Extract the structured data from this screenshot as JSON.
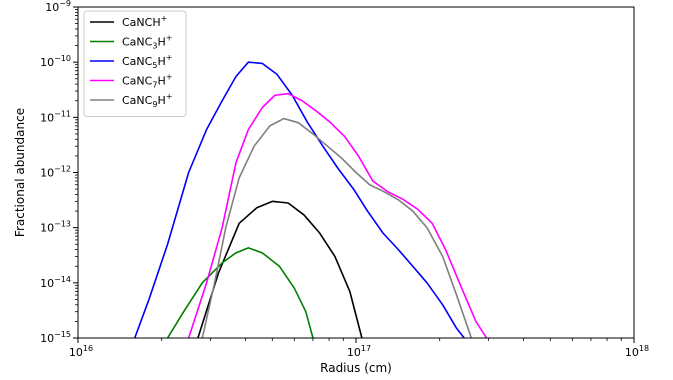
{
  "chart_data": {
    "type": "line",
    "xlabel": "Radius (cm)",
    "ylabel": "Fractional abundance",
    "xscale": "log",
    "yscale": "log",
    "xlim": [
      1e+16,
      1e+18
    ],
    "ylim": [
      1e-15,
      1e-09
    ],
    "legend": "top-left",
    "grid": false,
    "x_ticks": [
      {
        "value": 1e+16,
        "base": "10",
        "exp": "16"
      },
      {
        "value": 1e+17,
        "base": "10",
        "exp": "17"
      },
      {
        "value": 1e+18,
        "base": "10",
        "exp": "18"
      }
    ],
    "y_ticks": [
      {
        "value": 1e-15,
        "base": "10",
        "exp": "−15"
      },
      {
        "value": 1e-14,
        "base": "10",
        "exp": "−14"
      },
      {
        "value": 1e-13,
        "base": "10",
        "exp": "−13"
      },
      {
        "value": 1e-12,
        "base": "10",
        "exp": "−12"
      },
      {
        "value": 1e-11,
        "base": "10",
        "exp": "−11"
      },
      {
        "value": 1e-10,
        "base": "10",
        "exp": "−10"
      },
      {
        "value": 1e-09,
        "base": "10",
        "exp": "−9"
      }
    ],
    "series": [
      {
        "name": "CaNCH⁺",
        "label_parts": [
          {
            "t": "CaNCH"
          },
          {
            "t": "+",
            "sup": true
          }
        ],
        "color": "#000000",
        "points": [
          [
            2.7e+16,
            1e-15
          ],
          [
            3.2e+16,
            1.5e-14
          ],
          [
            3.8e+16,
            1.2e-13
          ],
          [
            4.4e+16,
            2.3e-13
          ],
          [
            5e+16,
            3e-13
          ],
          [
            5.7e+16,
            2.8e-13
          ],
          [
            6.5e+16,
            1.7e-13
          ],
          [
            7.4e+16,
            8e-14
          ],
          [
            8.4e+16,
            3e-14
          ],
          [
            9.5e+16,
            7e-15
          ],
          [
            1.05e+17,
            1e-15
          ]
        ]
      },
      {
        "name": "CaNC₃H⁺",
        "label_parts": [
          {
            "t": "CaNC"
          },
          {
            "t": "3",
            "sub": true
          },
          {
            "t": "H"
          },
          {
            "t": "+",
            "sup": true
          }
        ],
        "color": "#008000",
        "points": [
          [
            2.1e+16,
            1e-15
          ],
          [
            2.4e+16,
            3e-15
          ],
          [
            2.8e+16,
            1e-14
          ],
          [
            3.3e+16,
            2.3e-14
          ],
          [
            3.7e+16,
            3.5e-14
          ],
          [
            4.1e+16,
            4.3e-14
          ],
          [
            4.6e+16,
            3.5e-14
          ],
          [
            5.3e+16,
            2e-14
          ],
          [
            6e+16,
            8e-15
          ],
          [
            6.6e+16,
            3e-15
          ],
          [
            7e+16,
            1e-15
          ]
        ]
      },
      {
        "name": "CaNC₅H⁺",
        "label_parts": [
          {
            "t": "CaNC"
          },
          {
            "t": "5",
            "sub": true
          },
          {
            "t": "H"
          },
          {
            "t": "+",
            "sup": true
          }
        ],
        "color": "#0000ff",
        "points": [
          [
            1.6e+16,
            1e-15
          ],
          [
            1.8e+16,
            5e-15
          ],
          [
            2.1e+16,
            5e-14
          ],
          [
            2.5e+16,
            1e-12
          ],
          [
            2.9e+16,
            6e-12
          ],
          [
            3.3e+16,
            2e-11
          ],
          [
            3.7e+16,
            5.5e-11
          ],
          [
            4.1e+16,
            1e-10
          ],
          [
            4.6e+16,
            9.5e-11
          ],
          [
            5.2e+16,
            6e-11
          ],
          [
            5.9e+16,
            2.5e-11
          ],
          [
            6.7e+16,
            8e-12
          ],
          [
            7.6e+16,
            3e-12
          ],
          [
            8.6e+16,
            1.2e-12
          ],
          [
            9.8e+16,
            5e-13
          ],
          [
            1.1e+17,
            2e-13
          ],
          [
            1.25e+17,
            8e-14
          ],
          [
            1.42e+17,
            4e-14
          ],
          [
            1.6e+17,
            2e-14
          ],
          [
            1.8e+17,
            1e-14
          ],
          [
            2.05e+17,
            4e-15
          ],
          [
            2.3e+17,
            1.5e-15
          ],
          [
            2.45e+17,
            1e-15
          ]
        ]
      },
      {
        "name": "CaNC₇H⁺",
        "label_parts": [
          {
            "t": "CaNC"
          },
          {
            "t": "7",
            "sub": true
          },
          {
            "t": "H"
          },
          {
            "t": "+",
            "sup": true
          }
        ],
        "color": "#ff00ff",
        "points": [
          [
            2.5e+16,
            1e-15
          ],
          [
            2.9e+16,
            1e-14
          ],
          [
            3.3e+16,
            1e-13
          ],
          [
            3.7e+16,
            1.5e-12
          ],
          [
            4.1e+16,
            6e-12
          ],
          [
            4.6e+16,
            1.5e-11
          ],
          [
            5.1e+16,
            2.5e-11
          ],
          [
            5.7e+16,
            2.7e-11
          ],
          [
            6.4e+16,
            2e-11
          ],
          [
            7.2e+16,
            1.3e-11
          ],
          [
            8.1e+16,
            8e-12
          ],
          [
            9.1e+16,
            4.5e-12
          ],
          [
            1.02e+17,
            2e-12
          ],
          [
            1.15e+17,
            7e-13
          ],
          [
            1.3e+17,
            4.5e-13
          ],
          [
            1.47e+17,
            3.3e-13
          ],
          [
            1.66e+17,
            2.2e-13
          ],
          [
            1.88e+17,
            1.2e-13
          ],
          [
            2.1e+17,
            4e-14
          ],
          [
            2.4e+17,
            8e-15
          ],
          [
            2.7e+17,
            2e-15
          ],
          [
            2.95e+17,
            1e-15
          ]
        ]
      },
      {
        "name": "CaNC₉H⁺",
        "label_parts": [
          {
            "t": "CaNC"
          },
          {
            "t": "9",
            "sub": true
          },
          {
            "t": "H"
          },
          {
            "t": "+",
            "sup": true
          }
        ],
        "color": "#808080",
        "points": [
          [
            2.8e+16,
            1e-15
          ],
          [
            3.1e+16,
            1e-14
          ],
          [
            3.4e+16,
            1e-13
          ],
          [
            3.8e+16,
            8e-13
          ],
          [
            4.3e+16,
            3e-12
          ],
          [
            4.9e+16,
            7e-12
          ],
          [
            5.5e+16,
            9.5e-12
          ],
          [
            6.2e+16,
            8e-12
          ],
          [
            7e+16,
            5e-12
          ],
          [
            7.9e+16,
            3e-12
          ],
          [
            8.9e+16,
            1.8e-12
          ],
          [
            1e+17,
            1e-12
          ],
          [
            1.12e+17,
            6e-13
          ],
          [
            1.26e+17,
            4.5e-13
          ],
          [
            1.42e+17,
            3.2e-13
          ],
          [
            1.6e+17,
            2e-13
          ],
          [
            1.8e+17,
            1e-13
          ],
          [
            2.05e+17,
            3e-14
          ],
          [
            2.3e+17,
            6e-15
          ],
          [
            2.6e+17,
            1e-15
          ]
        ]
      }
    ]
  }
}
